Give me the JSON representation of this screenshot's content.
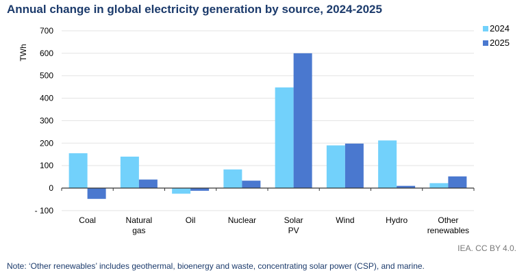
{
  "title": "Annual change in global electricity generation by source, 2024-2025",
  "note": "Note: ‘Other renewables’ includes geothermal, bioenergy and waste, concentrating solar power (CSP), and marine.",
  "source": "IEA. CC BY 4.0.",
  "chart_data": {
    "type": "bar",
    "title": "Annual change in global electricity generation by source, 2024-2025",
    "ylabel": "TWh",
    "xlabel": "",
    "ylim": [
      -100,
      700
    ],
    "yticks": [
      700,
      600,
      500,
      400,
      300,
      200,
      100,
      0,
      -100
    ],
    "ytick_labels": [
      "700",
      "600",
      "500",
      "400",
      "300",
      "200",
      "100",
      "0",
      "- 100"
    ],
    "grid": true,
    "legend": "top-right",
    "categories": [
      "Coal",
      "Natural gas",
      "Oil",
      "Nuclear",
      "Solar PV",
      "Wind",
      "Hydro",
      "Other renewables"
    ],
    "category_lines": [
      [
        "Coal"
      ],
      [
        "Natural",
        "gas"
      ],
      [
        "Oil"
      ],
      [
        "Nuclear"
      ],
      [
        "Solar",
        "PV"
      ],
      [
        "Wind"
      ],
      [
        "Hydro"
      ],
      [
        "Other",
        "renewables"
      ]
    ],
    "series": [
      {
        "name": "2024",
        "color": "#72d1fb",
        "values": [
          155,
          140,
          -25,
          83,
          448,
          190,
          212,
          22
        ]
      },
      {
        "name": "2025",
        "color": "#4a78cf",
        "values": [
          -48,
          38,
          -12,
          33,
          600,
          198,
          10,
          52
        ]
      }
    ]
  }
}
